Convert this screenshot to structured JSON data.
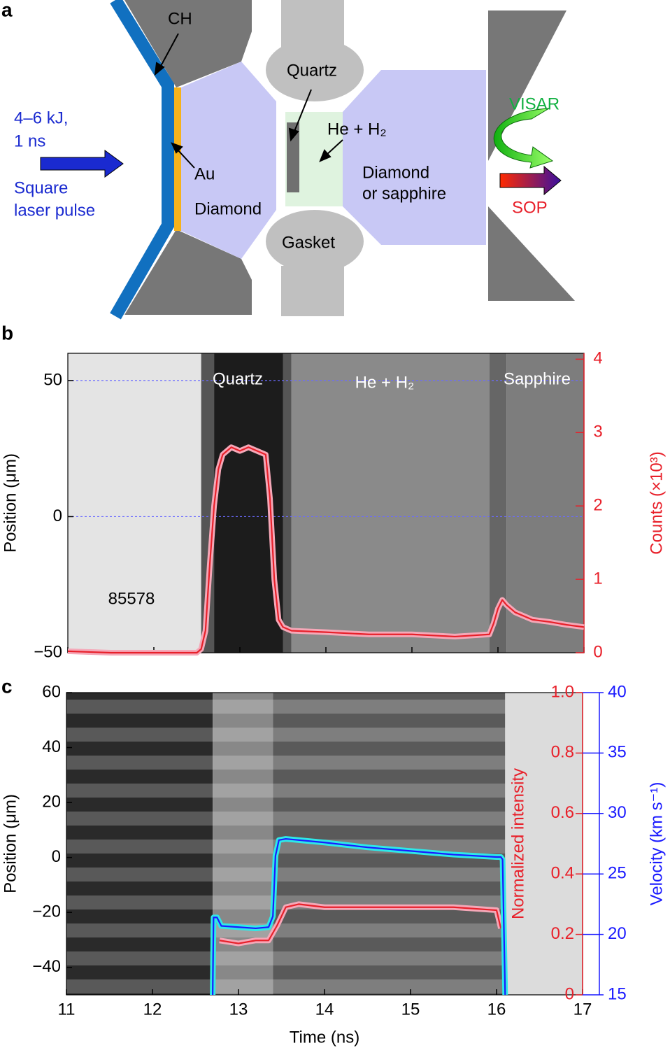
{
  "diagram": {
    "panel": "a",
    "labels": {
      "ch": "CH",
      "quartz": "Quartz",
      "mixture": "He + H₂",
      "energy": "4–6 kJ,",
      "duration": "1 ns",
      "pulse1": "Square",
      "pulse2": "laser pulse",
      "au": "Au",
      "diamond": "Diamond",
      "gasket": "Gasket",
      "window1": "Diamond",
      "window2": "or sapphire",
      "visar": "VISAR",
      "sop": "SOP"
    }
  },
  "chart_data": [
    {
      "type": "line",
      "panel": "b",
      "ylabel": "Position (μm)",
      "y2label": "Counts (×10³)",
      "annotations": [
        "Quartz",
        "He + H₂",
        "Sapphire",
        "85578"
      ],
      "xlim": [
        11,
        17
      ],
      "xticks": [
        11,
        12,
        13,
        14,
        15,
        16,
        17
      ],
      "ylim": [
        -50,
        60
      ],
      "yticks": [
        {
          "value": -50,
          "label": "−50"
        },
        0,
        50
      ],
      "y2lim": [
        0,
        4.08
      ],
      "y2ticks": [
        0,
        1,
        2,
        3,
        4
      ],
      "grid_values": [
        0,
        50
      ],
      "series": [
        {
          "color": "#e8202a",
          "axis": "y2",
          "x": [
            11,
            11.5,
            12,
            12.5,
            12.55,
            12.6,
            12.65,
            12.7,
            12.75,
            12.8,
            12.9,
            13,
            13.1,
            13.2,
            13.3,
            13.35,
            13.4,
            13.45,
            13.5,
            13.6,
            14,
            14.5,
            15,
            15.5,
            15.9,
            15.95,
            16,
            16.05,
            16.1,
            16.2,
            16.4,
            16.6,
            16.8,
            17
          ],
          "values": [
            0.02,
            0,
            0,
            0,
            0.05,
            0.3,
            1.2,
            2.0,
            2.5,
            2.7,
            2.8,
            2.75,
            2.8,
            2.75,
            2.7,
            2.1,
            1.0,
            0.45,
            0.35,
            0.3,
            0.28,
            0.25,
            0.25,
            0.22,
            0.25,
            0.4,
            0.6,
            0.72,
            0.65,
            0.55,
            0.45,
            0.42,
            0.38,
            0.35
          ]
        }
      ]
    },
    {
      "type": "line",
      "panel": "c",
      "xlabel": "Time (ns)",
      "ylabel": "Position (μm)",
      "y2label": "Normalized intensity",
      "y3label": "Velocity (km s⁻¹)",
      "xlim": [
        11,
        17
      ],
      "xticks": [
        11,
        12,
        13,
        14,
        15,
        16,
        17
      ],
      "ylim": [
        -50,
        60
      ],
      "yticks": [
        {
          "value": -40,
          "label": "−40"
        },
        {
          "value": -20,
          "label": "−20"
        },
        0,
        20,
        40,
        60
      ],
      "y2lim": [
        0,
        1
      ],
      "y2ticks": [
        0,
        0.2,
        0.4,
        0.6,
        0.8,
        {
          "value": 1,
          "label": "1.0"
        }
      ],
      "y3lim": [
        15,
        40
      ],
      "y3ticks": [
        15,
        20,
        25,
        30,
        35,
        40
      ],
      "series": [
        {
          "color": "#e8202a",
          "axis": "y2",
          "x": [
            12.78,
            13,
            13.2,
            13.35,
            13.45,
            13.55,
            13.7,
            14,
            14.5,
            15,
            15.5,
            16,
            16.05
          ],
          "values": [
            0.18,
            0.17,
            0.18,
            0.18,
            0.23,
            0.29,
            0.3,
            0.29,
            0.29,
            0.29,
            0.29,
            0.28,
            0.22
          ]
        },
        {
          "color": "#1a1aff",
          "axis": "y3",
          "x": [
            12.7,
            12.71,
            12.75,
            12.8,
            13,
            13.2,
            13.35,
            13.4,
            13.43,
            13.47,
            13.55,
            14,
            14.5,
            15,
            15.5,
            16,
            16.05,
            16.07,
            16.1
          ],
          "values": [
            15,
            21.4,
            21.4,
            20.7,
            20.6,
            20.5,
            20.6,
            21.5,
            26.5,
            27.8,
            27.9,
            27.6,
            27.2,
            26.9,
            26.6,
            26.4,
            26.4,
            26.2,
            15
          ]
        }
      ]
    }
  ]
}
